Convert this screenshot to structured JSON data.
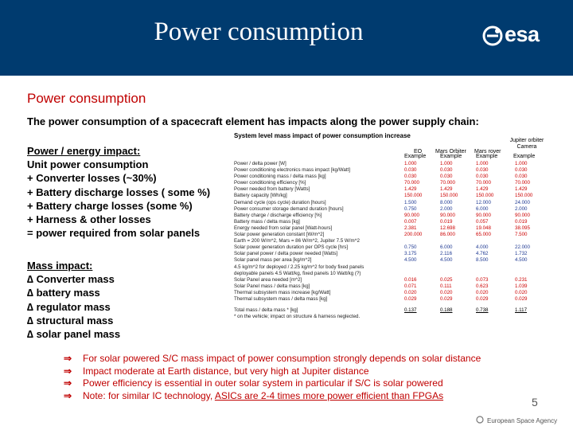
{
  "header": {
    "title": "Power consumption",
    "logo_text": "esa",
    "bg_color": "#003b6f"
  },
  "main": {
    "subtitle": "Power consumption",
    "intro": "The power consumption of a spacecraft element has impacts along the power supply chain:",
    "power_impact": {
      "heading": "Power / energy impact:",
      "lines": [
        "Unit power consumption",
        "+ Converter losses (~30%)",
        "+ Battery discharge losses ( some %)",
        "+ Battery charge losses (some %)",
        "+ Harness & other losses",
        "= power required from solar panels"
      ]
    },
    "mass_impact": {
      "heading": "Mass impact:",
      "lines": [
        "∆ Converter mass",
        "∆ battery mass",
        "∆ regulator mass",
        "∆ structural mass",
        "∆ solar panel mass"
      ]
    }
  },
  "table": {
    "title": "System level mass impact of power consumption increase",
    "columns": [
      "EO",
      "Mars Orbiter",
      "Mars rover",
      "Jupiter orbiter Camera"
    ],
    "example_label": "Example",
    "rows": [
      {
        "label": "Power / delta power [W]",
        "values": [
          "1.000",
          "1.000",
          "1.000",
          "1.000"
        ]
      },
      {
        "label": "Power conditioning electronics mass impact [kg/Watt]",
        "values": [
          "0.030",
          "0.030",
          "0.030",
          "0.030"
        ]
      },
      {
        "label": "Power conditioning mass / delta mass [kg]",
        "values": [
          "0.030",
          "0.030",
          "0.030",
          "0.030"
        ]
      },
      {
        "label": "Power conditioning efficiency [%]",
        "values": [
          "70.000",
          "70.000",
          "70.000",
          "70.000"
        ]
      },
      {
        "label": "Power needed from battery [Watts]",
        "values": [
          "1.429",
          "1.429",
          "1.429",
          "1.429"
        ]
      },
      {
        "label": "Battery capacity [Wh/kg]",
        "values": [
          "150.000",
          "150.000",
          "150.000",
          "150.000"
        ]
      },
      {
        "label": "Demand cycle (ops cycle) duration [hours]",
        "values": [
          "1.500",
          "8.000",
          "12.000",
          "24.000"
        ]
      },
      {
        "label": "Power consumer storage demand duration [hours]",
        "values": [
          "0.750",
          "2.000",
          "6.000",
          "2.000"
        ]
      },
      {
        "label": "Battery charge / discharge efficiency [%]",
        "values": [
          "90.000",
          "90.000",
          "90.000",
          "90.000"
        ]
      },
      {
        "label": "Battery mass / delta mass [kg]",
        "values": [
          "0.007",
          "0.019",
          "0.057",
          "0.019"
        ]
      },
      {
        "label": "Energy needed from solar panel [Watt-hours]",
        "values": [
          "2.381",
          "12.698",
          "19.048",
          "38.095"
        ]
      },
      {
        "label": "Solar power generation constant [W/m^2]",
        "values": [
          "200.000",
          "86.000",
          "65.000",
          "7.500"
        ]
      },
      {
        "label": "Earth = 200 W/m^2, Mars = 86 W/m^2, Jupiter 7.5 W/m^2",
        "values": [
          "",
          "",
          "",
          ""
        ]
      },
      {
        "label": "Solar power generation duration per OPS cycle [hrs]",
        "values": [
          "0.750",
          "6.000",
          "4.000",
          "22.000"
        ]
      },
      {
        "label": "Solar panel power / delta power needed [Watts]",
        "values": [
          "3.175",
          "2.116",
          "4.762",
          "1.732"
        ]
      },
      {
        "label": "Solar panel mass per area [kg/m^2]",
        "values": [
          "4.500",
          "4.500",
          "8.500",
          "4.500"
        ]
      },
      {
        "label": "4.5 kg/m^2 for deployed / 2.25 kg/m^2 for body fixed panels",
        "values": [
          "",
          "",
          "",
          ""
        ]
      },
      {
        "label": "deployable panels 4.5 Watt/kg, fixed panels 10 Watt/kg (?)",
        "values": [
          "",
          "",
          "",
          ""
        ]
      },
      {
        "label": "Solar Panel area needed [m^2]",
        "values": [
          "0.016",
          "0.025",
          "0.073",
          "0.231"
        ]
      },
      {
        "label": "Solar Panel mass / delta mass [kg]",
        "values": [
          "0.071",
          "0.111",
          "0.623",
          "1.039"
        ]
      },
      {
        "label": "Thermal subsystem mass increase [kg/Watt]",
        "values": [
          "0.020",
          "0.020",
          "0.020",
          "0.020"
        ]
      },
      {
        "label": "Thermal subsystem mass / delta mass [kg]",
        "values": [
          "0.029",
          "0.029",
          "0.029",
          "0.029"
        ]
      }
    ],
    "total": {
      "label": "Total mass / delta mass * [kg]",
      "values": [
        "0.137",
        "0.188",
        "0.738",
        "1.117"
      ]
    },
    "footnote": "* on the vehicle; impact on structure & harness neglected."
  },
  "conclusions": [
    {
      "text": "For solar powered S/C mass impact of power consumption strongly depends on solar distance"
    },
    {
      "text": "Impact moderate at Earth distance, but very high at Jupiter distance"
    },
    {
      "text": "Power efficiency is essential in outer solar system in particular if S/C is solar powered"
    },
    {
      "text_before": "Note: for similar IC technology, ",
      "text_underlined": "ASICs are 2-4 times more power efficient than FPGAs"
    }
  ],
  "footer": {
    "page_number": "5",
    "agency": "European Space Agency"
  }
}
